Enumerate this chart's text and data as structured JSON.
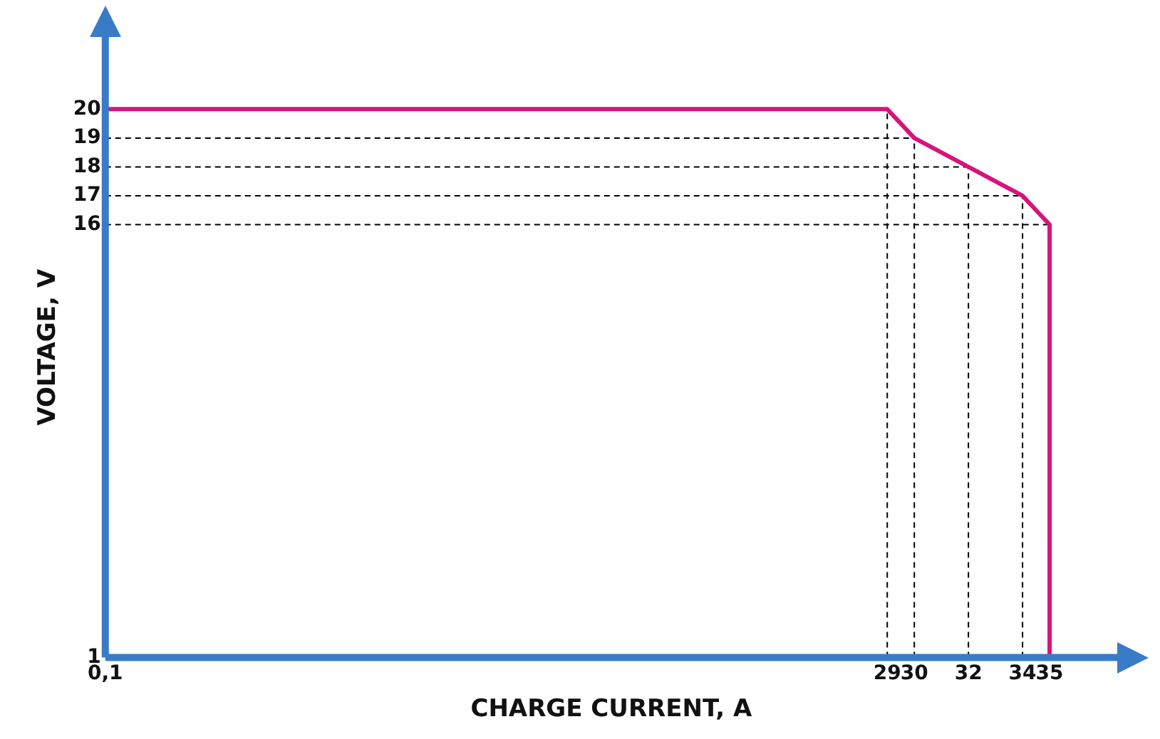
{
  "chart_data": {
    "type": "line",
    "xlabel": "CHARGE CURRENT, A",
    "ylabel": "VOLTAGE, V",
    "series": [
      {
        "color": "#d6147c",
        "x": [
          0.1,
          29,
          30,
          32,
          34,
          35,
          35
        ],
        "values": [
          20,
          20,
          19,
          18,
          17,
          16,
          1
        ]
      }
    ],
    "xlim": [
      0.1,
      37.5
    ],
    "ylim": [
      1,
      22.5
    ],
    "xticks": [
      {
        "value": 0.1,
        "label": "0,1"
      },
      29,
      30,
      32,
      34,
      35
    ],
    "yticks": [
      1,
      16,
      17,
      18,
      19,
      20
    ],
    "grid": true,
    "line_style": "solid",
    "marker": "none",
    "legend": false
  }
}
